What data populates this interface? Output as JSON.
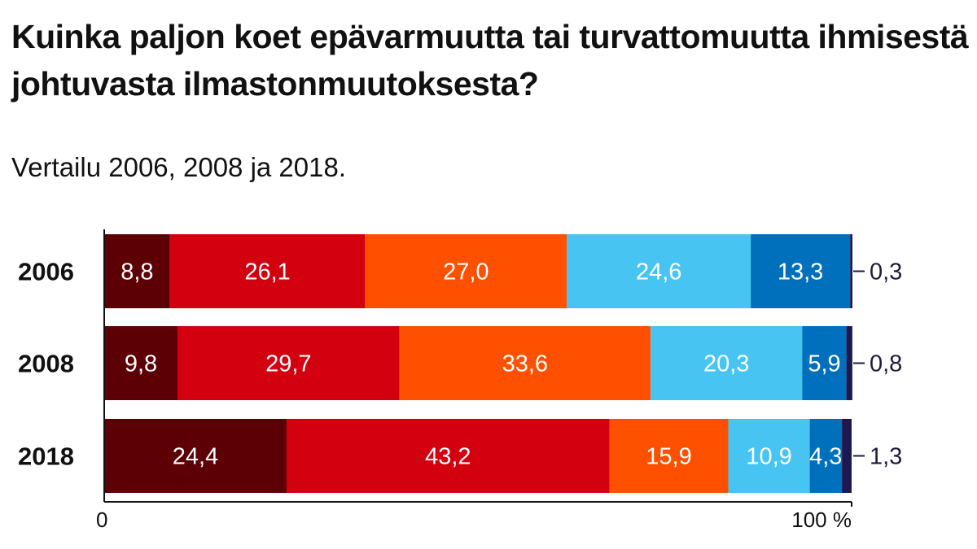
{
  "title": "Kuinka paljon koet epävarmuutta tai turvattomuutta ihmisestä johtuvasta ilmastonmuutoksesta?",
  "subtitle": "Vertailu 2006, 2008 ja 2018.",
  "chart_data": {
    "type": "bar",
    "orientation": "horizontal",
    "stacked": true,
    "categories": [
      "2006",
      "2008",
      "2018"
    ],
    "series": [
      {
        "color": "#5c0006",
        "values": [
          8.8,
          9.8,
          24.4
        ],
        "labels": [
          "8,8",
          "9,8",
          "24,4"
        ]
      },
      {
        "color": "#d3000f",
        "values": [
          26.1,
          29.7,
          43.2
        ],
        "labels": [
          "26,1",
          "29,7",
          "43,2"
        ]
      },
      {
        "color": "#ff5000",
        "values": [
          27.0,
          33.6,
          15.9
        ],
        "labels": [
          "27,0",
          "33,6",
          "15,9"
        ]
      },
      {
        "color": "#48c4f2",
        "values": [
          24.6,
          20.3,
          10.9
        ],
        "labels": [
          "24,6",
          "20,3",
          "10,9"
        ]
      },
      {
        "color": "#0070bd",
        "values": [
          13.3,
          5.9,
          4.3
        ],
        "labels": [
          "13,3",
          "5,9",
          "4,3"
        ]
      },
      {
        "color": "#1e1850",
        "values": [
          0.3,
          0.8,
          1.3
        ],
        "labels": [
          "0,3",
          "0,8",
          "1,3"
        ],
        "label_position": "outside-right"
      }
    ],
    "xlim": [
      0,
      100
    ],
    "x_tick_labels": [
      "0",
      "100 %"
    ],
    "grid": false,
    "legend": "none"
  }
}
